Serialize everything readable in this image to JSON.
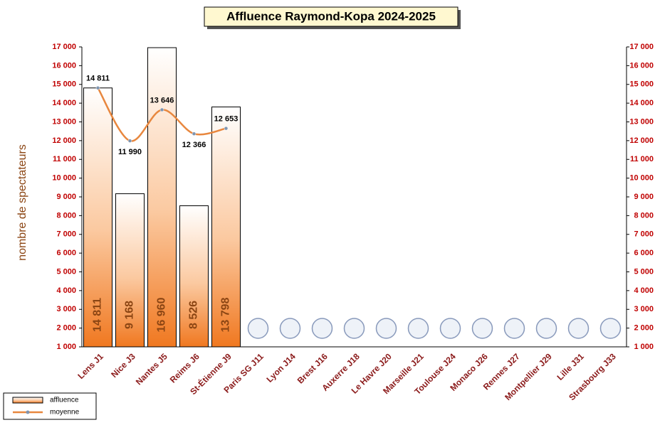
{
  "chart_data": {
    "type": "bar",
    "title": "Affluence Raymond-Kopa 2024-2025",
    "y_label": "nombre de spectateurs",
    "categories": [
      "Lens J1",
      "Nice J3",
      "Nantes J5",
      "Reims J6",
      "St-Étienne J9",
      "Paris SG J11",
      "Lyon J14",
      "Brest J16",
      "Auxerre J18",
      "Le Havre J20",
      "Marseille J21",
      "Toulouse J24",
      "Monaco J26",
      "Rennes J27",
      "Montpellier J29",
      "Lille J31",
      "Strasbourg J33"
    ],
    "series": [
      {
        "name": "affluence",
        "type": "bar",
        "color": "#f07820",
        "values": [
          14811,
          9168,
          16960,
          8526,
          13798,
          null,
          null,
          null,
          null,
          null,
          null,
          null,
          null,
          null,
          null,
          null,
          null
        ],
        "value_labels": [
          "14 811",
          "9 168",
          "16 960",
          "8 526",
          "13 798",
          null,
          null,
          null,
          null,
          null,
          null,
          null,
          null,
          null,
          null,
          null,
          null
        ]
      },
      {
        "name": "moyenne",
        "type": "line",
        "color": "#e8873e",
        "marker_color": "#7f95b0",
        "values": [
          14811,
          11990,
          13646,
          12366,
          12653,
          null,
          null,
          null,
          null,
          null,
          null,
          null,
          null,
          null,
          null,
          null,
          null
        ],
        "value_labels": [
          "14 811",
          "11 990",
          "13 646",
          "12 366",
          "12 653",
          null,
          null,
          null,
          null,
          null,
          null,
          null,
          null,
          null,
          null,
          null,
          null
        ]
      }
    ],
    "ylim": [
      1000,
      17000
    ],
    "yticks": [
      {
        "value": 1000,
        "label": "1 000"
      },
      {
        "value": 2000,
        "label": "2 000"
      },
      {
        "value": 3000,
        "label": "3 000"
      },
      {
        "value": 4000,
        "label": "4 000"
      },
      {
        "value": 5000,
        "label": "5 000"
      },
      {
        "value": 6000,
        "label": "6 000"
      },
      {
        "value": 7000,
        "label": "7 000"
      },
      {
        "value": 8000,
        "label": "8 000"
      },
      {
        "value": 9000,
        "label": "9 000"
      },
      {
        "value": 10000,
        "label": "10 000"
      },
      {
        "value": 11000,
        "label": "11 000"
      },
      {
        "value": 12000,
        "label": "12 000"
      },
      {
        "value": 13000,
        "label": "13 000"
      },
      {
        "value": 14000,
        "label": "14 000"
      },
      {
        "value": 15000,
        "label": "15 000"
      },
      {
        "value": 16000,
        "label": "16 000"
      },
      {
        "value": 17000,
        "label": "17 000"
      }
    ],
    "y2lim": [
      1000,
      17000
    ],
    "y2ticks": [
      {
        "value": 1000,
        "label": "1 000"
      },
      {
        "value": 2000,
        "label": "2 000"
      },
      {
        "value": 3000,
        "label": "3 000"
      },
      {
        "value": 4000,
        "label": "4 000"
      },
      {
        "value": 5000,
        "label": "5 000"
      },
      {
        "value": 6000,
        "label": "6 000"
      },
      {
        "value": 7000,
        "label": "7 000"
      },
      {
        "value": 8000,
        "label": "8 000"
      },
      {
        "value": 9000,
        "label": "9 000"
      },
      {
        "value": 10000,
        "label": "10 000"
      },
      {
        "value": 11000,
        "label": "11 000"
      },
      {
        "value": 12000,
        "label": "12 000"
      },
      {
        "value": 13000,
        "label": "13 000"
      },
      {
        "value": 14000,
        "label": "14 000"
      },
      {
        "value": 15000,
        "label": "15 000"
      },
      {
        "value": 16000,
        "label": "16 000"
      },
      {
        "value": 17000,
        "label": "17 000"
      }
    ],
    "grid": false,
    "legend": "bottom-left"
  }
}
